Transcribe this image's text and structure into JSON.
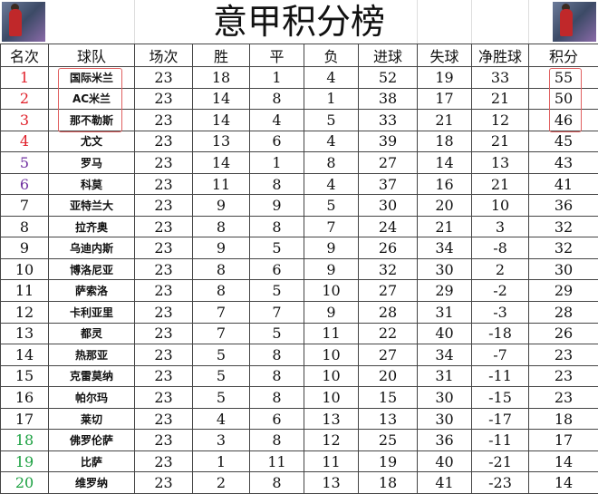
{
  "title": "意甲积分榜",
  "colors": {
    "top": "#e0202a",
    "europa": "#7030a0",
    "relegation": "#1aa040",
    "highlight": "#e06060"
  },
  "headers": [
    "名次",
    "球队",
    "场次",
    "胜",
    "平",
    "负",
    "进球",
    "失球",
    "净胜球",
    "积分"
  ],
  "rows": [
    [
      "1",
      "国际米兰",
      "23",
      "18",
      "1",
      "4",
      "52",
      "19",
      "33",
      "55"
    ],
    [
      "2",
      "AC米兰",
      "23",
      "14",
      "8",
      "1",
      "38",
      "17",
      "21",
      "50"
    ],
    [
      "3",
      "那不勒斯",
      "23",
      "14",
      "4",
      "5",
      "33",
      "21",
      "12",
      "46"
    ],
    [
      "4",
      "尤文",
      "23",
      "13",
      "6",
      "4",
      "39",
      "18",
      "21",
      "45"
    ],
    [
      "5",
      "罗马",
      "23",
      "14",
      "1",
      "8",
      "27",
      "14",
      "13",
      "43"
    ],
    [
      "6",
      "科莫",
      "23",
      "11",
      "8",
      "4",
      "37",
      "16",
      "21",
      "41"
    ],
    [
      "7",
      "亚特兰大",
      "23",
      "9",
      "9",
      "5",
      "30",
      "20",
      "10",
      "36"
    ],
    [
      "8",
      "拉齐奥",
      "23",
      "8",
      "8",
      "7",
      "24",
      "21",
      "3",
      "32"
    ],
    [
      "9",
      "乌迪内斯",
      "23",
      "9",
      "5",
      "9",
      "26",
      "34",
      "-8",
      "32"
    ],
    [
      "10",
      "博洛尼亚",
      "23",
      "8",
      "6",
      "9",
      "32",
      "30",
      "2",
      "30"
    ],
    [
      "11",
      "萨索洛",
      "23",
      "8",
      "5",
      "10",
      "27",
      "29",
      "-2",
      "29"
    ],
    [
      "12",
      "卡利亚里",
      "23",
      "7",
      "7",
      "9",
      "28",
      "31",
      "-3",
      "28"
    ],
    [
      "13",
      "都灵",
      "23",
      "7",
      "5",
      "11",
      "22",
      "40",
      "-18",
      "26"
    ],
    [
      "14",
      "热那亚",
      "23",
      "5",
      "8",
      "10",
      "27",
      "34",
      "-7",
      "23"
    ],
    [
      "15",
      "克雷莫纳",
      "23",
      "5",
      "8",
      "10",
      "20",
      "31",
      "-11",
      "23"
    ],
    [
      "16",
      "帕尔玛",
      "23",
      "5",
      "8",
      "10",
      "15",
      "30",
      "-15",
      "23"
    ],
    [
      "17",
      "莱切",
      "23",
      "4",
      "6",
      "13",
      "13",
      "30",
      "-17",
      "18"
    ],
    [
      "18",
      "佛罗伦萨",
      "23",
      "3",
      "8",
      "12",
      "25",
      "36",
      "-11",
      "17"
    ],
    [
      "19",
      "比萨",
      "23",
      "1",
      "11",
      "11",
      "19",
      "40",
      "-21",
      "14"
    ],
    [
      "20",
      "维罗纳",
      "23",
      "2",
      "8",
      "13",
      "18",
      "41",
      "-23",
      "14"
    ]
  ]
}
